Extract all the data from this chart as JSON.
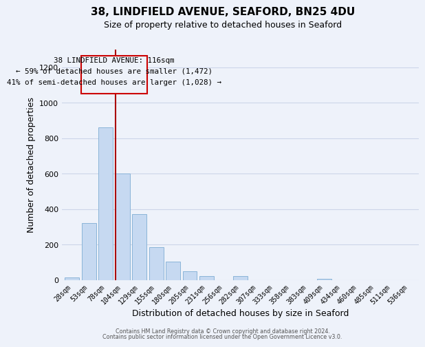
{
  "title": "38, LINDFIELD AVENUE, SEAFORD, BN25 4DU",
  "subtitle": "Size of property relative to detached houses in Seaford",
  "xlabel": "Distribution of detached houses by size in Seaford",
  "ylabel": "Number of detached properties",
  "bar_color": "#c6d9f1",
  "bar_edge_color": "#8ab4d8",
  "bin_labels": [
    "28sqm",
    "53sqm",
    "78sqm",
    "104sqm",
    "129sqm",
    "155sqm",
    "180sqm",
    "205sqm",
    "231sqm",
    "256sqm",
    "282sqm",
    "307sqm",
    "333sqm",
    "358sqm",
    "383sqm",
    "409sqm",
    "434sqm",
    "460sqm",
    "485sqm",
    "511sqm",
    "536sqm"
  ],
  "bar_heights": [
    12,
    320,
    860,
    600,
    370,
    185,
    105,
    47,
    22,
    0,
    20,
    0,
    0,
    0,
    0,
    5,
    0,
    0,
    0,
    0,
    0
  ],
  "ylim": [
    0,
    1300
  ],
  "yticks": [
    0,
    200,
    400,
    600,
    800,
    1000,
    1200
  ],
  "vline_bin": 3,
  "vline_color": "#aa0000",
  "annotation_line1": "38 LINDFIELD AVENUE: 116sqm",
  "annotation_line2": "← 59% of detached houses are smaller (1,472)",
  "annotation_line3": "41% of semi-detached houses are larger (1,028) →",
  "box_edge_color": "#cc0000",
  "footer_line1": "Contains HM Land Registry data © Crown copyright and database right 2024.",
  "footer_line2": "Contains public sector information licensed under the Open Government Licence v3.0.",
  "grid_color": "#ccd5e8",
  "background_color": "#eef2fa"
}
